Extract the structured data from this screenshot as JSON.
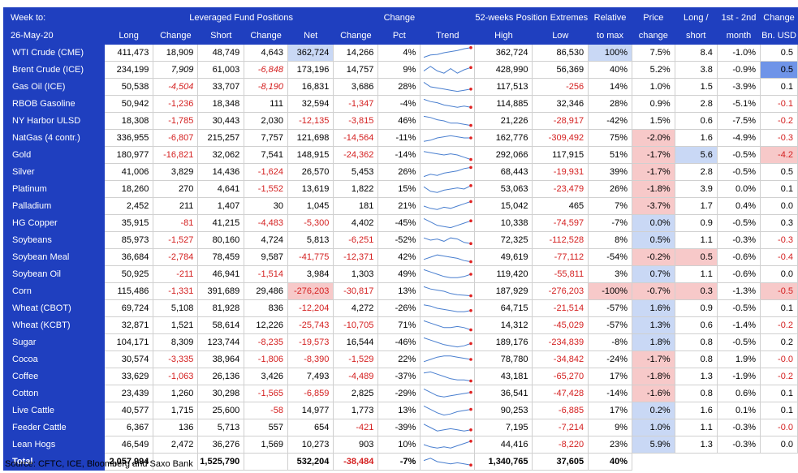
{
  "header": {
    "week_label": "Week to:",
    "week_date": "26-May-20",
    "group_leveraged": "Leveraged Fund Positions",
    "group_extremes": "52-weeks Position Extremes",
    "col_long": "Long",
    "col_change1": "Change",
    "col_short": "Short",
    "col_change2": "Change",
    "col_net": "Net",
    "col_change3": "Change",
    "col_change_pct_1": "Change",
    "col_change_pct_2": "Pct",
    "col_trend": "Trend",
    "col_high": "High",
    "col_low": "Low",
    "col_rel_1": "Relative",
    "col_rel_2": "to max",
    "col_price_1": "Price",
    "col_price_2": "change",
    "col_ls_1": "Long /",
    "col_ls_2": "short",
    "col_month_1": "1st - 2nd",
    "col_month_2": "month",
    "col_usd_1": "Change",
    "col_usd_2": "Bn. USD"
  },
  "chart_data": {
    "type": "table",
    "title": "Leveraged Fund Positions",
    "columns": [
      "Name",
      "Long",
      "Change",
      "Short",
      "Change",
      "Net",
      "Change",
      "Change Pct",
      "Trend",
      "High",
      "Low",
      "Relative to max",
      "Price change",
      "Long / short",
      "1st - 2nd month",
      "Change Bn. USD"
    ],
    "rows": [
      {
        "name": "WTI Crude (CME)",
        "long": "411,473",
        "chg_long": "18,909",
        "short": "48,749",
        "chg_short": "4,643",
        "net": "362,724",
        "chg_net": "14,266",
        "chg_pct": "4%",
        "trend": [
          0.1,
          0.3,
          0.35,
          0.5,
          0.6,
          0.7,
          0.85,
          0.95
        ],
        "high": "362,724",
        "low": "86,530",
        "rel": "100%",
        "price": "7.5%",
        "ls": "8.4",
        "month": "-1.0%",
        "usd": "0.5",
        "grp": false,
        "hl": {
          "net": "hl-blue",
          "rel": "hl-blue"
        }
      },
      {
        "name": "Brent Crude (ICE)",
        "long": "234,199",
        "chg_long": "7,909",
        "short": "61,003",
        "chg_short": "-6,848",
        "net": "173,196",
        "chg_net": "14,757",
        "chg_pct": "9%",
        "trend": [
          0.4,
          0.8,
          0.4,
          0.2,
          0.6,
          0.2,
          0.5,
          0.7
        ],
        "high": "428,990",
        "low": "56,369",
        "rel": "40%",
        "price": "5.2%",
        "ls": "3.8",
        "month": "-0.9%",
        "usd": "0.5",
        "grp": false,
        "hl": {
          "usd": "hl-bluestrong"
        },
        "italic": [
          "chg_long",
          "chg_short"
        ]
      },
      {
        "name": "Gas Oil (ICE)",
        "long": "50,538",
        "chg_long": "-4,504",
        "short": "33,707",
        "chg_short": "-8,190",
        "net": "16,831",
        "chg_net": "3,686",
        "chg_pct": "28%",
        "trend": [
          0.9,
          0.5,
          0.4,
          0.3,
          0.2,
          0.1,
          0.2,
          0.3
        ],
        "high": "117,513",
        "low": "-256",
        "rel": "14%",
        "price": "1.0%",
        "ls": "1.5",
        "month": "-3.9%",
        "usd": "0.1",
        "grp": false,
        "italic": [
          "chg_long",
          "chg_short"
        ]
      },
      {
        "name": "RBOB Gasoline",
        "long": "50,942",
        "chg_long": "-1,236",
        "short": "18,348",
        "chg_short": "111",
        "net": "32,594",
        "chg_net": "-1,347",
        "chg_pct": "-4%",
        "trend": [
          0.9,
          0.7,
          0.6,
          0.4,
          0.3,
          0.2,
          0.3,
          0.2
        ],
        "high": "114,885",
        "low": "32,346",
        "rel": "28%",
        "price": "0.9%",
        "ls": "2.8",
        "month": "-5.1%",
        "usd": "-0.1",
        "grp": false
      },
      {
        "name": "NY Harbor ULSD",
        "long": "18,308",
        "chg_long": "-1,785",
        "short": "30,443",
        "chg_short": "2,030",
        "net": "-12,135",
        "chg_net": "-3,815",
        "chg_pct": "46%",
        "trend": [
          0.9,
          0.8,
          0.6,
          0.5,
          0.3,
          0.3,
          0.2,
          0.1
        ],
        "high": "21,226",
        "low": "-28,917",
        "rel": "-42%",
        "price": "1.5%",
        "ls": "0.6",
        "month": "-7.5%",
        "usd": "-0.2",
        "grp": false
      },
      {
        "name": "NatGas (4 contr.)",
        "long": "336,955",
        "chg_long": "-6,807",
        "short": "215,257",
        "chg_short": "7,757",
        "net": "121,698",
        "chg_net": "-14,564",
        "chg_pct": "-11%",
        "trend": [
          0.2,
          0.3,
          0.5,
          0.6,
          0.7,
          0.6,
          0.5,
          0.5
        ],
        "high": "162,776",
        "low": "-309,492",
        "rel": "75%",
        "price": "-2.0%",
        "ls": "1.6",
        "month": "-4.9%",
        "usd": "-0.3",
        "grp": false,
        "hl": {
          "price": "hl-pink"
        }
      },
      {
        "name": "Gold",
        "long": "180,977",
        "chg_long": "-16,821",
        "short": "32,062",
        "chg_short": "7,541",
        "net": "148,915",
        "chg_net": "-24,362",
        "chg_pct": "-14%",
        "trend": [
          0.8,
          0.7,
          0.6,
          0.5,
          0.6,
          0.5,
          0.3,
          0.1
        ],
        "high": "292,066",
        "low": "117,915",
        "rel": "51%",
        "price": "-1.7%",
        "ls": "5.6",
        "month": "-0.5%",
        "usd": "-4.2",
        "grp": true,
        "hl": {
          "price": "hl-pink",
          "ls": "hl-blue",
          "usd": "hl-pink"
        }
      },
      {
        "name": "Silver",
        "long": "41,006",
        "chg_long": "3,829",
        "short": "14,436",
        "chg_short": "-1,624",
        "net": "26,570",
        "chg_net": "5,453",
        "chg_pct": "26%",
        "trend": [
          0.1,
          0.3,
          0.2,
          0.4,
          0.5,
          0.6,
          0.8,
          0.9
        ],
        "high": "68,443",
        "low": "-19,931",
        "rel": "39%",
        "price": "-1.7%",
        "ls": "2.8",
        "month": "-0.5%",
        "usd": "0.5",
        "grp": false,
        "hl": {
          "price": "hl-pink"
        }
      },
      {
        "name": "Platinum",
        "long": "18,260",
        "chg_long": "270",
        "short": "4,641",
        "chg_short": "-1,552",
        "net": "13,619",
        "chg_net": "1,822",
        "chg_pct": "15%",
        "trend": [
          0.7,
          0.3,
          0.2,
          0.4,
          0.5,
          0.6,
          0.5,
          0.8
        ],
        "high": "53,063",
        "low": "-23,479",
        "rel": "26%",
        "price": "-1.8%",
        "ls": "3.9",
        "month": "0.0%",
        "usd": "0.1",
        "grp": false,
        "hl": {
          "price": "hl-pink"
        }
      },
      {
        "name": "Palladium",
        "long": "2,452",
        "chg_long": "211",
        "short": "1,407",
        "chg_short": "30",
        "net": "1,045",
        "chg_net": "181",
        "chg_pct": "21%",
        "trend": [
          0.5,
          0.3,
          0.2,
          0.4,
          0.3,
          0.5,
          0.7,
          0.9
        ],
        "high": "15,042",
        "low": "465",
        "rel": "7%",
        "price": "-3.7%",
        "ls": "1.7",
        "month": "0.4%",
        "usd": "0.0",
        "grp": false,
        "hl": {
          "price": "hl-pink"
        }
      },
      {
        "name": "HG Copper",
        "long": "35,915",
        "chg_long": "-81",
        "short": "41,215",
        "chg_short": "-4,483",
        "net": "-5,300",
        "chg_net": "4,402",
        "chg_pct": "-45%",
        "trend": [
          0.9,
          0.6,
          0.3,
          0.2,
          0.1,
          0.3,
          0.5,
          0.7
        ],
        "high": "10,338",
        "low": "-74,597",
        "rel": "-7%",
        "price": "0.0%",
        "ls": "0.9",
        "month": "-0.5%",
        "usd": "0.3",
        "grp": false,
        "hl": {
          "price": "hl-blue"
        }
      },
      {
        "name": "Soybeans",
        "long": "85,973",
        "chg_long": "-1,527",
        "short": "80,160",
        "chg_short": "4,724",
        "net": "5,813",
        "chg_net": "-6,251",
        "chg_pct": "-52%",
        "trend": [
          0.7,
          0.5,
          0.6,
          0.4,
          0.7,
          0.6,
          0.3,
          0.2
        ],
        "high": "72,325",
        "low": "-112,528",
        "rel": "8%",
        "price": "0.5%",
        "ls": "1.1",
        "month": "-0.3%",
        "usd": "-0.3",
        "grp": true,
        "hl": {
          "price": "hl-blue"
        }
      },
      {
        "name": "Soybean Meal",
        "long": "36,684",
        "chg_long": "-2,784",
        "short": "78,459",
        "chg_short": "9,587",
        "net": "-41,775",
        "chg_net": "-12,371",
        "chg_pct": "42%",
        "trend": [
          0.3,
          0.5,
          0.7,
          0.6,
          0.5,
          0.4,
          0.2,
          0.1
        ],
        "high": "49,619",
        "low": "-77,112",
        "rel": "-54%",
        "price": "-0.2%",
        "ls": "0.5",
        "month": "-0.6%",
        "usd": "-0.4",
        "grp": false,
        "hl": {
          "price": "hl-pink",
          "ls": "hl-pink"
        }
      },
      {
        "name": "Soybean Oil",
        "long": "50,925",
        "chg_long": "-211",
        "short": "46,941",
        "chg_short": "-1,514",
        "net": "3,984",
        "chg_net": "1,303",
        "chg_pct": "49%",
        "trend": [
          0.9,
          0.7,
          0.5,
          0.3,
          0.2,
          0.2,
          0.3,
          0.5
        ],
        "high": "119,420",
        "low": "-55,811",
        "rel": "3%",
        "price": "0.7%",
        "ls": "1.1",
        "month": "-0.6%",
        "usd": "0.0",
        "grp": false,
        "hl": {
          "price": "hl-blue"
        }
      },
      {
        "name": "Corn",
        "long": "115,486",
        "chg_long": "-1,331",
        "short": "391,689",
        "chg_short": "29,486",
        "net": "-276,203",
        "chg_net": "-30,817",
        "chg_pct": "13%",
        "trend": [
          0.9,
          0.7,
          0.6,
          0.5,
          0.3,
          0.2,
          0.15,
          0.1
        ],
        "high": "187,929",
        "low": "-276,203",
        "rel": "-100%",
        "price": "-0.7%",
        "ls": "0.3",
        "month": "-1.3%",
        "usd": "-0.5",
        "grp": false,
        "hl": {
          "net": "hl-pink",
          "rel": "hl-pink",
          "price": "hl-pink",
          "ls": "hl-pink",
          "usd": "hl-pink"
        }
      },
      {
        "name": "Wheat (CBOT)",
        "long": "69,724",
        "chg_long": "5,108",
        "short": "81,928",
        "chg_short": "836",
        "net": "-12,204",
        "chg_net": "4,272",
        "chg_pct": "-26%",
        "trend": [
          0.8,
          0.7,
          0.5,
          0.4,
          0.3,
          0.2,
          0.2,
          0.3
        ],
        "high": "64,715",
        "low": "-21,514",
        "rel": "-57%",
        "price": "1.6%",
        "ls": "0.9",
        "month": "-0.5%",
        "usd": "0.1",
        "grp": false,
        "hl": {
          "price": "hl-blue"
        }
      },
      {
        "name": "Wheat (KCBT)",
        "long": "32,871",
        "chg_long": "1,521",
        "short": "58,614",
        "chg_short": "12,226",
        "net": "-25,743",
        "chg_net": "-10,705",
        "chg_pct": "71%",
        "trend": [
          0.9,
          0.7,
          0.5,
          0.3,
          0.3,
          0.4,
          0.3,
          0.1
        ],
        "high": "14,312",
        "low": "-45,029",
        "rel": "-57%",
        "price": "1.3%",
        "ls": "0.6",
        "month": "-1.4%",
        "usd": "-0.2",
        "grp": false,
        "hl": {
          "price": "hl-blue"
        }
      },
      {
        "name": "Sugar",
        "long": "104,171",
        "chg_long": "8,309",
        "short": "123,744",
        "chg_short": "-8,235",
        "net": "-19,573",
        "chg_net": "16,544",
        "chg_pct": "-46%",
        "trend": [
          0.9,
          0.7,
          0.5,
          0.3,
          0.2,
          0.1,
          0.2,
          0.4
        ],
        "high": "189,176",
        "low": "-234,839",
        "rel": "-8%",
        "price": "1.8%",
        "ls": "0.8",
        "month": "-0.5%",
        "usd": "0.2",
        "grp": true,
        "hl": {
          "price": "hl-blue"
        }
      },
      {
        "name": "Cocoa",
        "long": "30,574",
        "chg_long": "-3,335",
        "short": "38,964",
        "chg_short": "-1,806",
        "net": "-8,390",
        "chg_net": "-1,529",
        "chg_pct": "22%",
        "trend": [
          0.3,
          0.5,
          0.7,
          0.8,
          0.8,
          0.7,
          0.6,
          0.5
        ],
        "high": "78,780",
        "low": "-34,842",
        "rel": "-24%",
        "price": "-1.7%",
        "ls": "0.8",
        "month": "1.9%",
        "usd": "-0.0",
        "grp": false,
        "hl": {
          "price": "hl-pink"
        }
      },
      {
        "name": "Coffee",
        "long": "33,629",
        "chg_long": "-1,063",
        "short": "26,136",
        "chg_short": "3,426",
        "net": "7,493",
        "chg_net": "-4,489",
        "chg_pct": "-37%",
        "trend": [
          0.8,
          0.9,
          0.7,
          0.5,
          0.3,
          0.2,
          0.2,
          0.1
        ],
        "high": "43,181",
        "low": "-65,270",
        "rel": "17%",
        "price": "-1.8%",
        "ls": "1.3",
        "month": "-1.9%",
        "usd": "-0.2",
        "grp": false,
        "hl": {
          "price": "hl-pink"
        }
      },
      {
        "name": "Cotton",
        "long": "23,439",
        "chg_long": "1,260",
        "short": "30,298",
        "chg_short": "-1,565",
        "net": "-6,859",
        "chg_net": "2,825",
        "chg_pct": "-29%",
        "trend": [
          0.9,
          0.6,
          0.3,
          0.2,
          0.3,
          0.4,
          0.5,
          0.6
        ],
        "high": "36,541",
        "low": "-47,428",
        "rel": "-14%",
        "price": "-1.6%",
        "ls": "0.8",
        "month": "0.6%",
        "usd": "0.1",
        "grp": false,
        "hl": {
          "price": "hl-pink"
        }
      },
      {
        "name": "Live Cattle",
        "long": "40,577",
        "chg_long": "1,715",
        "short": "25,600",
        "chg_short": "-58",
        "net": "14,977",
        "chg_net": "1,773",
        "chg_pct": "13%",
        "trend": [
          0.9,
          0.6,
          0.3,
          0.1,
          0.2,
          0.4,
          0.5,
          0.6
        ],
        "high": "90,253",
        "low": "-6,885",
        "rel": "17%",
        "price": "0.2%",
        "ls": "1.6",
        "month": "0.1%",
        "usd": "0.1",
        "grp": true,
        "hl": {
          "price": "hl-blue"
        }
      },
      {
        "name": "Feeder Cattle",
        "long": "6,367",
        "chg_long": "136",
        "short": "5,713",
        "chg_short": "557",
        "net": "654",
        "chg_net": "-421",
        "chg_pct": "-39%",
        "trend": [
          0.8,
          0.5,
          0.2,
          0.3,
          0.4,
          0.3,
          0.2,
          0.3
        ],
        "high": "7,195",
        "low": "-7,214",
        "rel": "9%",
        "price": "1.0%",
        "ls": "1.1",
        "month": "-0.3%",
        "usd": "-0.0",
        "grp": false,
        "hl": {
          "price": "hl-blue"
        }
      },
      {
        "name": "Lean Hogs",
        "long": "46,549",
        "chg_long": "2,472",
        "short": "36,276",
        "chg_short": "1,569",
        "net": "10,273",
        "chg_net": "903",
        "chg_pct": "10%",
        "trend": [
          0.5,
          0.3,
          0.2,
          0.3,
          0.2,
          0.4,
          0.6,
          0.8
        ],
        "high": "44,416",
        "low": "-8,220",
        "rel": "23%",
        "price": "5.9%",
        "ls": "1.3",
        "month": "-0.3%",
        "usd": "0.0",
        "grp": false,
        "hl": {
          "price": "hl-blue"
        }
      }
    ],
    "total": {
      "name": "Total",
      "long": "2,057,994",
      "chg_long": "",
      "short": "1,525,790",
      "chg_short": "",
      "net": "532,204",
      "chg_net": "-38,484",
      "chg_pct": "-7%",
      "trend": [
        0.6,
        0.8,
        0.5,
        0.4,
        0.3,
        0.4,
        0.3,
        0.2
      ],
      "high": "1,340,765",
      "low": "37,605",
      "rel": "40%"
    }
  },
  "source": "Source: CFTC, ICE, Bloomberg and Saxo Bank"
}
